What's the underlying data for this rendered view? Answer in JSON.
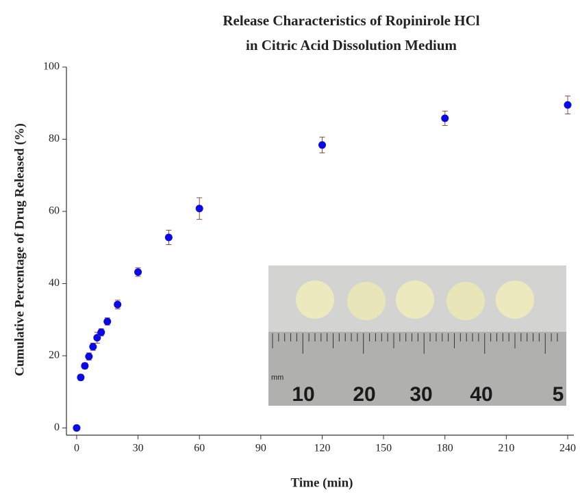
{
  "chart_data": {
    "type": "scatter",
    "title": [
      "Release Characteristics of Ropinirole HCl",
      "in Citric Acid Dissolution Medium"
    ],
    "x_label": "Time (min)",
    "y_label": "Cumulative Percentage of Drug Released (%)",
    "series": [
      {
        "color": "#0a0ae6",
        "error_color": "#8a4a3a",
        "x": [
          0,
          2,
          4,
          6,
          8,
          10,
          12,
          15,
          20,
          30,
          45,
          60,
          120,
          180,
          240
        ],
        "values": [
          0,
          14,
          17.2,
          19.8,
          22.5,
          25,
          26.5,
          29.5,
          34.2,
          43.2,
          52.8,
          60.8,
          78.4,
          85.8,
          89.5
        ],
        "errors": [
          0.5,
          0.8,
          0.8,
          1,
          1,
          1.5,
          1,
          1,
          1.2,
          1.2,
          2,
          3,
          2.2,
          2,
          2.5
        ]
      }
    ],
    "xlim": [
      -5,
      243
    ],
    "xticks": [
      0,
      30,
      60,
      90,
      120,
      150,
      180,
      210,
      240
    ],
    "ylim": [
      -2,
      100
    ],
    "yticks": [
      0,
      20,
      40,
      60,
      80,
      100
    ],
    "grid": false,
    "inset_labels": [
      "mm",
      "10",
      "20",
      "30",
      "40",
      "5"
    ]
  }
}
